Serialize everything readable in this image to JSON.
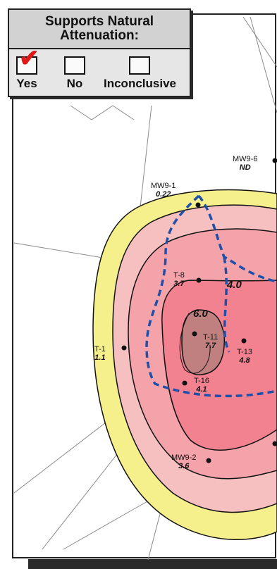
{
  "legend": {
    "title": "Supports Natural Attenuation:",
    "options": [
      {
        "label": "Yes",
        "checked": true
      },
      {
        "label": "No",
        "checked": false
      },
      {
        "label": "Inconclusive",
        "checked": false
      }
    ],
    "check_symbol": "✔"
  },
  "wells": [
    {
      "id": "MW9-6",
      "value": "ND"
    },
    {
      "id": "MW9-1",
      "value": "0.22"
    },
    {
      "id": "T-8",
      "value": "3.7"
    },
    {
      "id": "T-11",
      "value": "7.7"
    },
    {
      "id": "T-13",
      "value": "4.8"
    },
    {
      "id": "T-1",
      "value": "1.1"
    },
    {
      "id": "T-16",
      "value": "4.1"
    },
    {
      "id": "MW9-2",
      "value": "3.6"
    }
  ],
  "contour_labels": [
    "4.0",
    "6.0"
  ],
  "colors": {
    "outer_zone": "#f5ef8c",
    "middle_zone": "#f7c0c0",
    "inner_zone": "#f28290",
    "core_zone": "#c08080",
    "boundary_dash": "#1f4fa8",
    "check": "#e01818"
  }
}
